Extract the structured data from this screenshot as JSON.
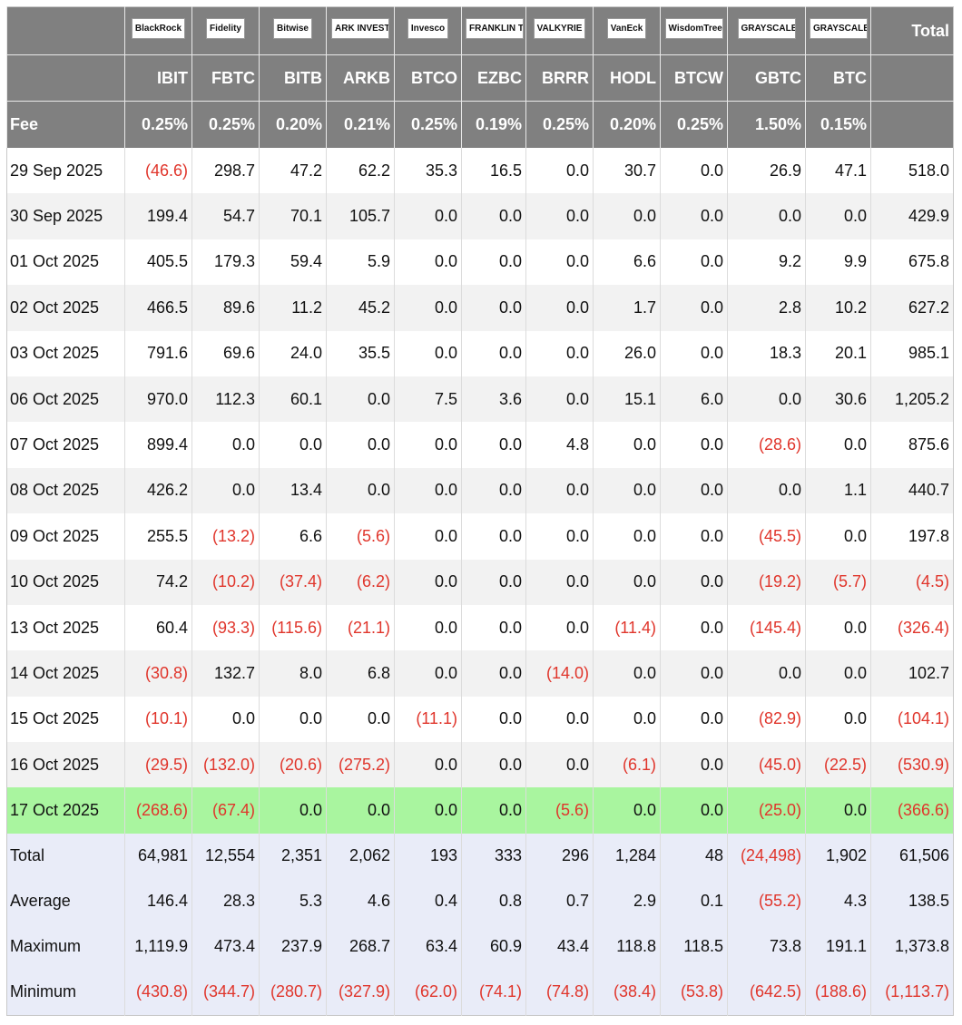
{
  "header": {
    "issuers": [
      "BlackRock",
      "Fidelity",
      "Bitwise",
      "ARK INVEST",
      "Invesco",
      "FRANKLIN TEMPLETON",
      "VALKYRIE",
      "VanEck",
      "WisdomTree",
      "GRAYSCALE",
      "GRAYSCALE"
    ],
    "total": "Total",
    "tickers": [
      "IBIT",
      "FBTC",
      "BITB",
      "ARKB",
      "BTCO",
      "EZBC",
      "BRRR",
      "HODL",
      "BTCW",
      "GBTC",
      "BTC"
    ],
    "fee_label": "Fee",
    "fees": [
      "0.25%",
      "0.25%",
      "0.20%",
      "0.21%",
      "0.25%",
      "0.19%",
      "0.25%",
      "0.20%",
      "0.25%",
      "1.50%",
      "0.15%"
    ]
  },
  "rows": [
    {
      "date": "29 Sep 2025",
      "values": [
        "(46.6)",
        "298.7",
        "47.2",
        "62.2",
        "35.3",
        "16.5",
        "0.0",
        "30.7",
        "0.0",
        "26.9",
        "47.1",
        "518.0"
      ]
    },
    {
      "date": "30 Sep 2025",
      "values": [
        "199.4",
        "54.7",
        "70.1",
        "105.7",
        "0.0",
        "0.0",
        "0.0",
        "0.0",
        "0.0",
        "0.0",
        "0.0",
        "429.9"
      ]
    },
    {
      "date": "01 Oct 2025",
      "values": [
        "405.5",
        "179.3",
        "59.4",
        "5.9",
        "0.0",
        "0.0",
        "0.0",
        "6.6",
        "0.0",
        "9.2",
        "9.9",
        "675.8"
      ]
    },
    {
      "date": "02 Oct 2025",
      "values": [
        "466.5",
        "89.6",
        "11.2",
        "45.2",
        "0.0",
        "0.0",
        "0.0",
        "1.7",
        "0.0",
        "2.8",
        "10.2",
        "627.2"
      ]
    },
    {
      "date": "03 Oct 2025",
      "values": [
        "791.6",
        "69.6",
        "24.0",
        "35.5",
        "0.0",
        "0.0",
        "0.0",
        "26.0",
        "0.0",
        "18.3",
        "20.1",
        "985.1"
      ]
    },
    {
      "date": "06 Oct 2025",
      "values": [
        "970.0",
        "112.3",
        "60.1",
        "0.0",
        "7.5",
        "3.6",
        "0.0",
        "15.1",
        "6.0",
        "0.0",
        "30.6",
        "1,205.2"
      ]
    },
    {
      "date": "07 Oct 2025",
      "values": [
        "899.4",
        "0.0",
        "0.0",
        "0.0",
        "0.0",
        "0.0",
        "4.8",
        "0.0",
        "0.0",
        "(28.6)",
        "0.0",
        "875.6"
      ]
    },
    {
      "date": "08 Oct 2025",
      "values": [
        "426.2",
        "0.0",
        "13.4",
        "0.0",
        "0.0",
        "0.0",
        "0.0",
        "0.0",
        "0.0",
        "0.0",
        "1.1",
        "440.7"
      ]
    },
    {
      "date": "09 Oct 2025",
      "values": [
        "255.5",
        "(13.2)",
        "6.6",
        "(5.6)",
        "0.0",
        "0.0",
        "0.0",
        "0.0",
        "0.0",
        "(45.5)",
        "0.0",
        "197.8"
      ]
    },
    {
      "date": "10 Oct 2025",
      "values": [
        "74.2",
        "(10.2)",
        "(37.4)",
        "(6.2)",
        "0.0",
        "0.0",
        "0.0",
        "0.0",
        "0.0",
        "(19.2)",
        "(5.7)",
        "(4.5)"
      ]
    },
    {
      "date": "13 Oct 2025",
      "values": [
        "60.4",
        "(93.3)",
        "(115.6)",
        "(21.1)",
        "0.0",
        "0.0",
        "0.0",
        "(11.4)",
        "0.0",
        "(145.4)",
        "0.0",
        "(326.4)"
      ]
    },
    {
      "date": "14 Oct 2025",
      "values": [
        "(30.8)",
        "132.7",
        "8.0",
        "6.8",
        "0.0",
        "0.0",
        "(14.0)",
        "0.0",
        "0.0",
        "0.0",
        "0.0",
        "102.7"
      ]
    },
    {
      "date": "15 Oct 2025",
      "values": [
        "(10.1)",
        "0.0",
        "0.0",
        "0.0",
        "(11.1)",
        "0.0",
        "0.0",
        "0.0",
        "0.0",
        "(82.9)",
        "0.0",
        "(104.1)"
      ]
    },
    {
      "date": "16 Oct 2025",
      "values": [
        "(29.5)",
        "(132.0)",
        "(20.6)",
        "(275.2)",
        "0.0",
        "0.0",
        "0.0",
        "(6.1)",
        "0.0",
        "(45.0)",
        "(22.5)",
        "(530.9)"
      ]
    },
    {
      "date": "17 Oct 2025",
      "values": [
        "(268.6)",
        "(67.4)",
        "0.0",
        "0.0",
        "0.0",
        "0.0",
        "(5.6)",
        "0.0",
        "0.0",
        "(25.0)",
        "0.0",
        "(366.6)"
      ]
    }
  ],
  "summary": [
    {
      "label": "Total",
      "values": [
        "64,981",
        "12,554",
        "2,351",
        "2,062",
        "193",
        "333",
        "296",
        "1,284",
        "48",
        "(24,498)",
        "1,902",
        "61,506"
      ]
    },
    {
      "label": "Average",
      "values": [
        "146.4",
        "28.3",
        "5.3",
        "4.6",
        "0.4",
        "0.8",
        "0.7",
        "2.9",
        "0.1",
        "(55.2)",
        "4.3",
        "138.5"
      ]
    },
    {
      "label": "Maximum",
      "values": [
        "1,119.9",
        "473.4",
        "237.9",
        "268.7",
        "63.4",
        "60.9",
        "43.4",
        "118.8",
        "118.5",
        "73.8",
        "191.1",
        "1,373.8"
      ]
    },
    {
      "label": "Minimum",
      "values": [
        "(430.8)",
        "(344.7)",
        "(280.7)",
        "(327.9)",
        "(62.0)",
        "(74.1)",
        "(74.8)",
        "(38.4)",
        "(53.8)",
        "(642.5)",
        "(188.6)",
        "(1,113.7)"
      ]
    }
  ]
}
